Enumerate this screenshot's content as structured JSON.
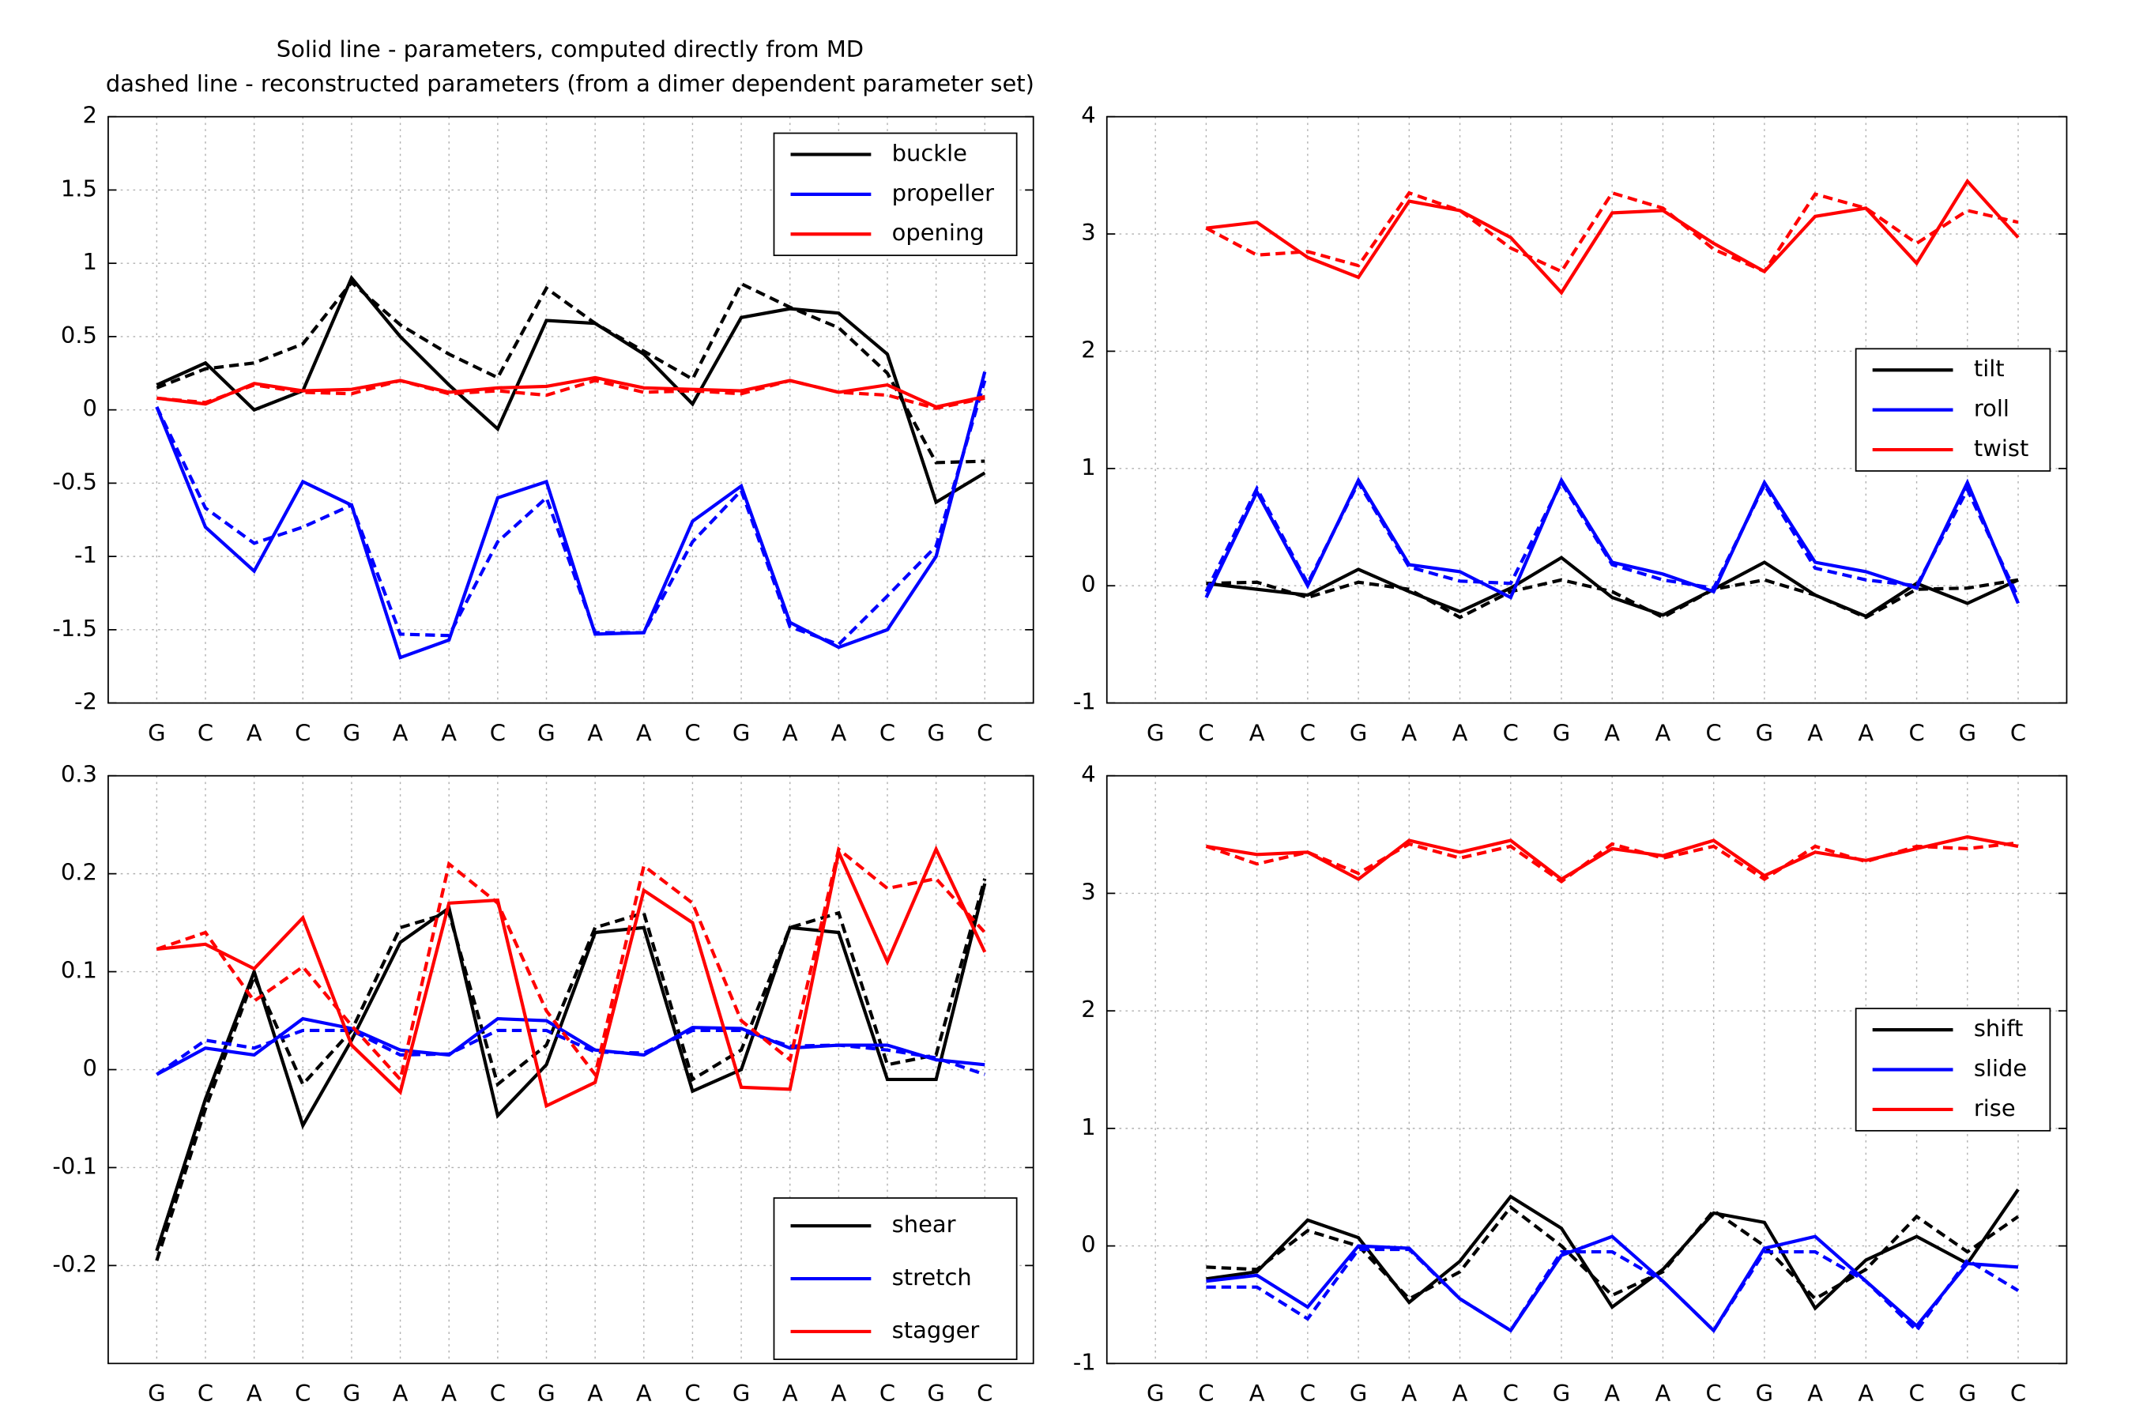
{
  "chart_data": [
    {
      "type": "line",
      "title": "Solid line - parameters, computed directly from MD",
      "subtitle": "dashed line - reconstructed parameters (from a dimer dependent parameter set)",
      "categories": [
        "G",
        "C",
        "A",
        "C",
        "G",
        "A",
        "A",
        "C",
        "G",
        "A",
        "A",
        "C",
        "G",
        "A",
        "A",
        "C",
        "G",
        "C"
      ],
      "ylim": [
        -2,
        2
      ],
      "yticks": [
        -2,
        -1.5,
        -1,
        -0.5,
        0,
        0.5,
        1,
        1.5,
        2
      ],
      "grid": true,
      "legend": "upper right",
      "series": [
        {
          "name": "buckle",
          "color": "#000000",
          "values": [
            0.17,
            0.32,
            0.0,
            0.13,
            0.9,
            0.5,
            0.17,
            -0.13,
            0.61,
            0.59,
            0.38,
            0.04,
            0.63,
            0.69,
            0.66,
            0.38,
            -0.63,
            -0.43
          ],
          "reconstructed": [
            0.15,
            0.28,
            0.32,
            0.45,
            0.87,
            0.58,
            0.38,
            0.22,
            0.83,
            0.59,
            0.4,
            0.21,
            0.86,
            0.7,
            0.56,
            0.25,
            -0.36,
            -0.35
          ]
        },
        {
          "name": "propeller",
          "color": "#0000ff",
          "values": [
            0.02,
            -0.8,
            -1.1,
            -0.49,
            -0.65,
            -1.69,
            -1.57,
            -0.6,
            -0.49,
            -1.53,
            -1.52,
            -0.76,
            -0.52,
            -1.45,
            -1.62,
            -1.5,
            -1.0,
            0.26
          ],
          "reconstructed": [
            0.02,
            -0.67,
            -0.91,
            -0.8,
            -0.65,
            -1.53,
            -1.54,
            -0.9,
            -0.6,
            -1.52,
            -1.52,
            -0.9,
            -0.55,
            -1.48,
            -1.6,
            -1.27,
            -0.93,
            0.2
          ]
        },
        {
          "name": "opening",
          "color": "#ff0000",
          "values": [
            0.08,
            0.04,
            0.18,
            0.13,
            0.14,
            0.2,
            0.12,
            0.15,
            0.16,
            0.22,
            0.15,
            0.14,
            0.13,
            0.2,
            0.12,
            0.17,
            0.02,
            0.09
          ],
          "reconstructed": [
            0.08,
            0.05,
            0.17,
            0.12,
            0.11,
            0.2,
            0.11,
            0.13,
            0.1,
            0.2,
            0.12,
            0.13,
            0.11,
            0.2,
            0.12,
            0.1,
            0.01,
            0.08
          ]
        }
      ]
    },
    {
      "type": "line",
      "categories": [
        "G",
        "C",
        "A",
        "C",
        "G",
        "A",
        "A",
        "C",
        "G",
        "A",
        "A",
        "C",
        "G",
        "A",
        "A",
        "C",
        "G",
        "C"
      ],
      "ylim": [
        -1,
        4
      ],
      "yticks": [
        -1,
        0,
        1,
        2,
        3,
        4
      ],
      "grid": true,
      "legend": "center right",
      "series": [
        {
          "name": "tilt",
          "color": "#000000",
          "values": [
            null,
            0.02,
            -0.03,
            -0.08,
            0.14,
            -0.05,
            -0.22,
            -0.02,
            0.24,
            -0.1,
            -0.25,
            -0.03,
            0.2,
            -0.08,
            -0.26,
            0.02,
            -0.15,
            0.05
          ],
          "reconstructed": [
            null,
            0.02,
            0.03,
            -0.1,
            0.03,
            -0.03,
            -0.27,
            -0.05,
            0.05,
            -0.05,
            -0.27,
            -0.03,
            0.05,
            -0.08,
            -0.27,
            -0.03,
            -0.02,
            0.05
          ]
        },
        {
          "name": "roll",
          "color": "#0000ff",
          "values": [
            null,
            -0.1,
            0.8,
            0.0,
            0.9,
            0.18,
            0.12,
            -0.1,
            0.9,
            0.2,
            0.1,
            -0.05,
            0.88,
            0.2,
            0.12,
            -0.02,
            0.88,
            -0.15
          ],
          "reconstructed": [
            null,
            -0.05,
            0.83,
            0.02,
            0.88,
            0.16,
            0.04,
            0.02,
            0.88,
            0.18,
            0.05,
            -0.02,
            0.86,
            0.15,
            0.05,
            0.0,
            0.82,
            -0.1
          ]
        },
        {
          "name": "twist",
          "color": "#ff0000",
          "values": [
            null,
            3.05,
            3.1,
            2.8,
            2.63,
            3.28,
            3.2,
            2.97,
            2.5,
            3.18,
            3.2,
            2.92,
            2.68,
            3.15,
            3.22,
            2.75,
            3.45,
            2.97
          ],
          "reconstructed": [
            null,
            3.05,
            2.82,
            2.85,
            2.73,
            3.35,
            3.2,
            2.88,
            2.68,
            3.35,
            3.22,
            2.87,
            2.68,
            3.34,
            3.22,
            2.92,
            3.2,
            3.1
          ]
        }
      ]
    },
    {
      "type": "line",
      "categories": [
        "G",
        "C",
        "A",
        "C",
        "G",
        "A",
        "A",
        "C",
        "G",
        "A",
        "A",
        "C",
        "G",
        "A",
        "A",
        "C",
        "G",
        "C"
      ],
      "ylim": [
        -0.3,
        0.3
      ],
      "yticks": [
        -0.2,
        -0.1,
        0,
        0.1,
        0.2,
        0.3
      ],
      "grid": true,
      "legend": "lower right",
      "series": [
        {
          "name": "shear",
          "color": "#000000",
          "values": [
            -0.185,
            -0.03,
            0.1,
            -0.057,
            0.03,
            0.13,
            0.165,
            -0.047,
            0.005,
            0.14,
            0.145,
            -0.022,
            0.0,
            0.145,
            0.14,
            -0.01,
            -0.01,
            0.19
          ],
          "reconstructed": [
            -0.195,
            -0.04,
            0.095,
            -0.015,
            0.04,
            0.145,
            0.16,
            -0.015,
            0.025,
            0.145,
            0.16,
            -0.01,
            0.02,
            0.145,
            0.16,
            0.005,
            0.015,
            0.195
          ]
        },
        {
          "name": "stretch",
          "color": "#0000ff",
          "values": [
            -0.005,
            0.022,
            0.015,
            0.052,
            0.042,
            0.02,
            0.015,
            0.052,
            0.05,
            0.02,
            0.015,
            0.043,
            0.042,
            0.022,
            0.025,
            0.025,
            0.01,
            0.005
          ],
          "reconstructed": [
            -0.005,
            0.03,
            0.022,
            0.04,
            0.04,
            0.015,
            0.016,
            0.04,
            0.04,
            0.018,
            0.017,
            0.04,
            0.04,
            0.024,
            0.025,
            0.02,
            0.012,
            -0.005
          ]
        },
        {
          "name": "stagger",
          "color": "#ff0000",
          "values": [
            0.123,
            0.128,
            0.103,
            0.155,
            0.025,
            -0.023,
            0.17,
            0.173,
            -0.037,
            -0.013,
            0.183,
            0.15,
            -0.018,
            -0.02,
            0.222,
            0.11,
            0.225,
            0.12
          ],
          "reconstructed": [
            0.123,
            0.14,
            0.07,
            0.105,
            0.045,
            -0.01,
            0.21,
            0.17,
            0.06,
            -0.005,
            0.208,
            0.17,
            0.05,
            0.01,
            0.225,
            0.185,
            0.195,
            0.14
          ]
        }
      ]
    },
    {
      "type": "line",
      "categories": [
        "G",
        "C",
        "A",
        "C",
        "G",
        "A",
        "A",
        "C",
        "G",
        "A",
        "A",
        "C",
        "G",
        "A",
        "A",
        "C",
        "G",
        "C"
      ],
      "ylim": [
        -1,
        4
      ],
      "yticks": [
        -1,
        0,
        1,
        2,
        3,
        4
      ],
      "grid": true,
      "legend": "center right",
      "series": [
        {
          "name": "shift",
          "color": "#000000",
          "values": [
            null,
            -0.28,
            -0.22,
            0.22,
            0.07,
            -0.48,
            -0.13,
            0.42,
            0.15,
            -0.52,
            -0.2,
            0.28,
            0.2,
            -0.53,
            -0.12,
            0.08,
            -0.15,
            0.48
          ],
          "reconstructed": [
            null,
            -0.18,
            -0.2,
            0.13,
            0.0,
            -0.45,
            -0.22,
            0.33,
            0.0,
            -0.42,
            -0.22,
            0.3,
            0.0,
            -0.45,
            -0.2,
            0.25,
            -0.05,
            0.25
          ]
        },
        {
          "name": "slide",
          "color": "#0000ff",
          "values": [
            null,
            -0.3,
            -0.25,
            -0.52,
            0.0,
            -0.02,
            -0.45,
            -0.72,
            -0.08,
            0.08,
            -0.3,
            -0.72,
            -0.02,
            0.08,
            -0.3,
            -0.68,
            -0.15,
            -0.18
          ],
          "reconstructed": [
            null,
            -0.35,
            -0.35,
            -0.62,
            -0.03,
            -0.03,
            -0.45,
            -0.72,
            -0.05,
            -0.05,
            -0.3,
            -0.72,
            -0.05,
            -0.05,
            -0.3,
            -0.72,
            -0.12,
            -0.38
          ]
        },
        {
          "name": "rise",
          "color": "#ff0000",
          "values": [
            null,
            3.4,
            3.33,
            3.35,
            3.12,
            3.45,
            3.35,
            3.45,
            3.12,
            3.38,
            3.32,
            3.45,
            3.15,
            3.35,
            3.28,
            3.38,
            3.48,
            3.4
          ],
          "reconstructed": [
            null,
            3.4,
            3.25,
            3.35,
            3.17,
            3.42,
            3.3,
            3.4,
            3.1,
            3.42,
            3.3,
            3.4,
            3.12,
            3.4,
            3.27,
            3.4,
            3.38,
            3.43
          ]
        }
      ]
    }
  ]
}
